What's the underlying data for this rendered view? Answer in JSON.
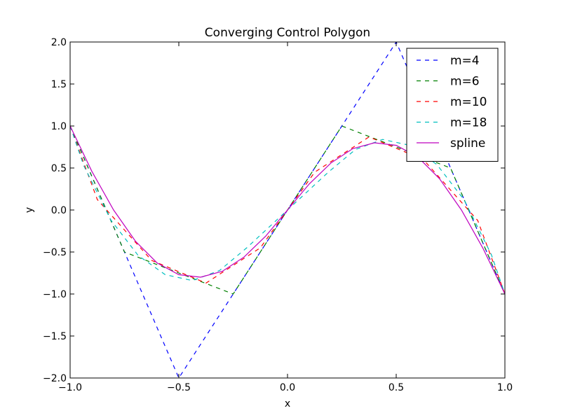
{
  "chart_data": {
    "type": "line",
    "title": "Converging Control Polygon",
    "xlabel": "x",
    "ylabel": "y",
    "xlim": [
      -1.0,
      1.0
    ],
    "ylim": [
      -2.0,
      2.0
    ],
    "xticks": [
      "−1.0",
      "−0.5",
      "0.0",
      "0.5",
      "1.0"
    ],
    "xtick_values": [
      -1.0,
      -0.5,
      0.0,
      0.5,
      1.0
    ],
    "yticks": [
      "−2.0",
      "−1.5",
      "−1.0",
      "−0.5",
      "0.0",
      "0.5",
      "1.0",
      "1.5",
      "2.0"
    ],
    "ytick_values": [
      -2.0,
      -1.5,
      -1.0,
      -0.5,
      0.0,
      0.5,
      1.0,
      1.5,
      2.0
    ],
    "grid": false,
    "legend_position": "top-right",
    "series": [
      {
        "name": "m=4",
        "color": "#0000ff",
        "style": "dashed",
        "x": [
          -1.0,
          -0.5,
          0.5,
          1.0
        ],
        "y": [
          1.0,
          -2.0,
          2.0,
          -1.0
        ]
      },
      {
        "name": "m=6",
        "color": "#008000",
        "style": "dashed",
        "x": [
          -1.0,
          -0.75,
          -0.25,
          0.25,
          0.75,
          1.0
        ],
        "y": [
          1.0,
          -0.5,
          -1.0,
          1.0,
          0.5,
          -1.0
        ]
      },
      {
        "name": "m=10",
        "color": "#ff0000",
        "style": "dashed",
        "x": [
          -1.0,
          -0.875,
          -0.625,
          -0.375,
          -0.125,
          0.125,
          0.375,
          0.625,
          0.875,
          1.0
        ],
        "y": [
          1.0,
          0.125,
          -0.6,
          -0.87,
          -0.45,
          0.45,
          0.87,
          0.6,
          -0.125,
          -1.0
        ]
      },
      {
        "name": "m=18",
        "color": "#00bfbf",
        "style": "dashed",
        "x": [
          -1.0,
          -0.9375,
          -0.8125,
          -0.6875,
          -0.5625,
          -0.4375,
          -0.3125,
          -0.1875,
          -0.0625,
          0.0625,
          0.1875,
          0.3125,
          0.4375,
          0.5625,
          0.6875,
          0.8125,
          0.9375,
          1.0
        ],
        "y": [
          1.0,
          0.53,
          -0.12,
          -0.54,
          -0.77,
          -0.84,
          -0.72,
          -0.45,
          -0.15,
          0.15,
          0.45,
          0.72,
          0.84,
          0.77,
          0.54,
          0.12,
          -0.53,
          -1.0
        ]
      },
      {
        "name": "spline",
        "color": "#bf00bf",
        "style": "solid",
        "x": [
          -1.0,
          -0.9,
          -0.8,
          -0.7,
          -0.6,
          -0.5,
          -0.4,
          -0.3,
          -0.2,
          -0.1,
          0.0,
          0.1,
          0.2,
          0.3,
          0.4,
          0.5,
          0.6,
          0.7,
          0.8,
          0.9,
          1.0
        ],
        "y": [
          1.0,
          0.46,
          0.0,
          -0.37,
          -0.63,
          -0.77,
          -0.8,
          -0.73,
          -0.56,
          -0.31,
          0.0,
          0.31,
          0.56,
          0.73,
          0.8,
          0.77,
          0.63,
          0.37,
          0.0,
          -0.46,
          -1.0
        ]
      }
    ]
  }
}
